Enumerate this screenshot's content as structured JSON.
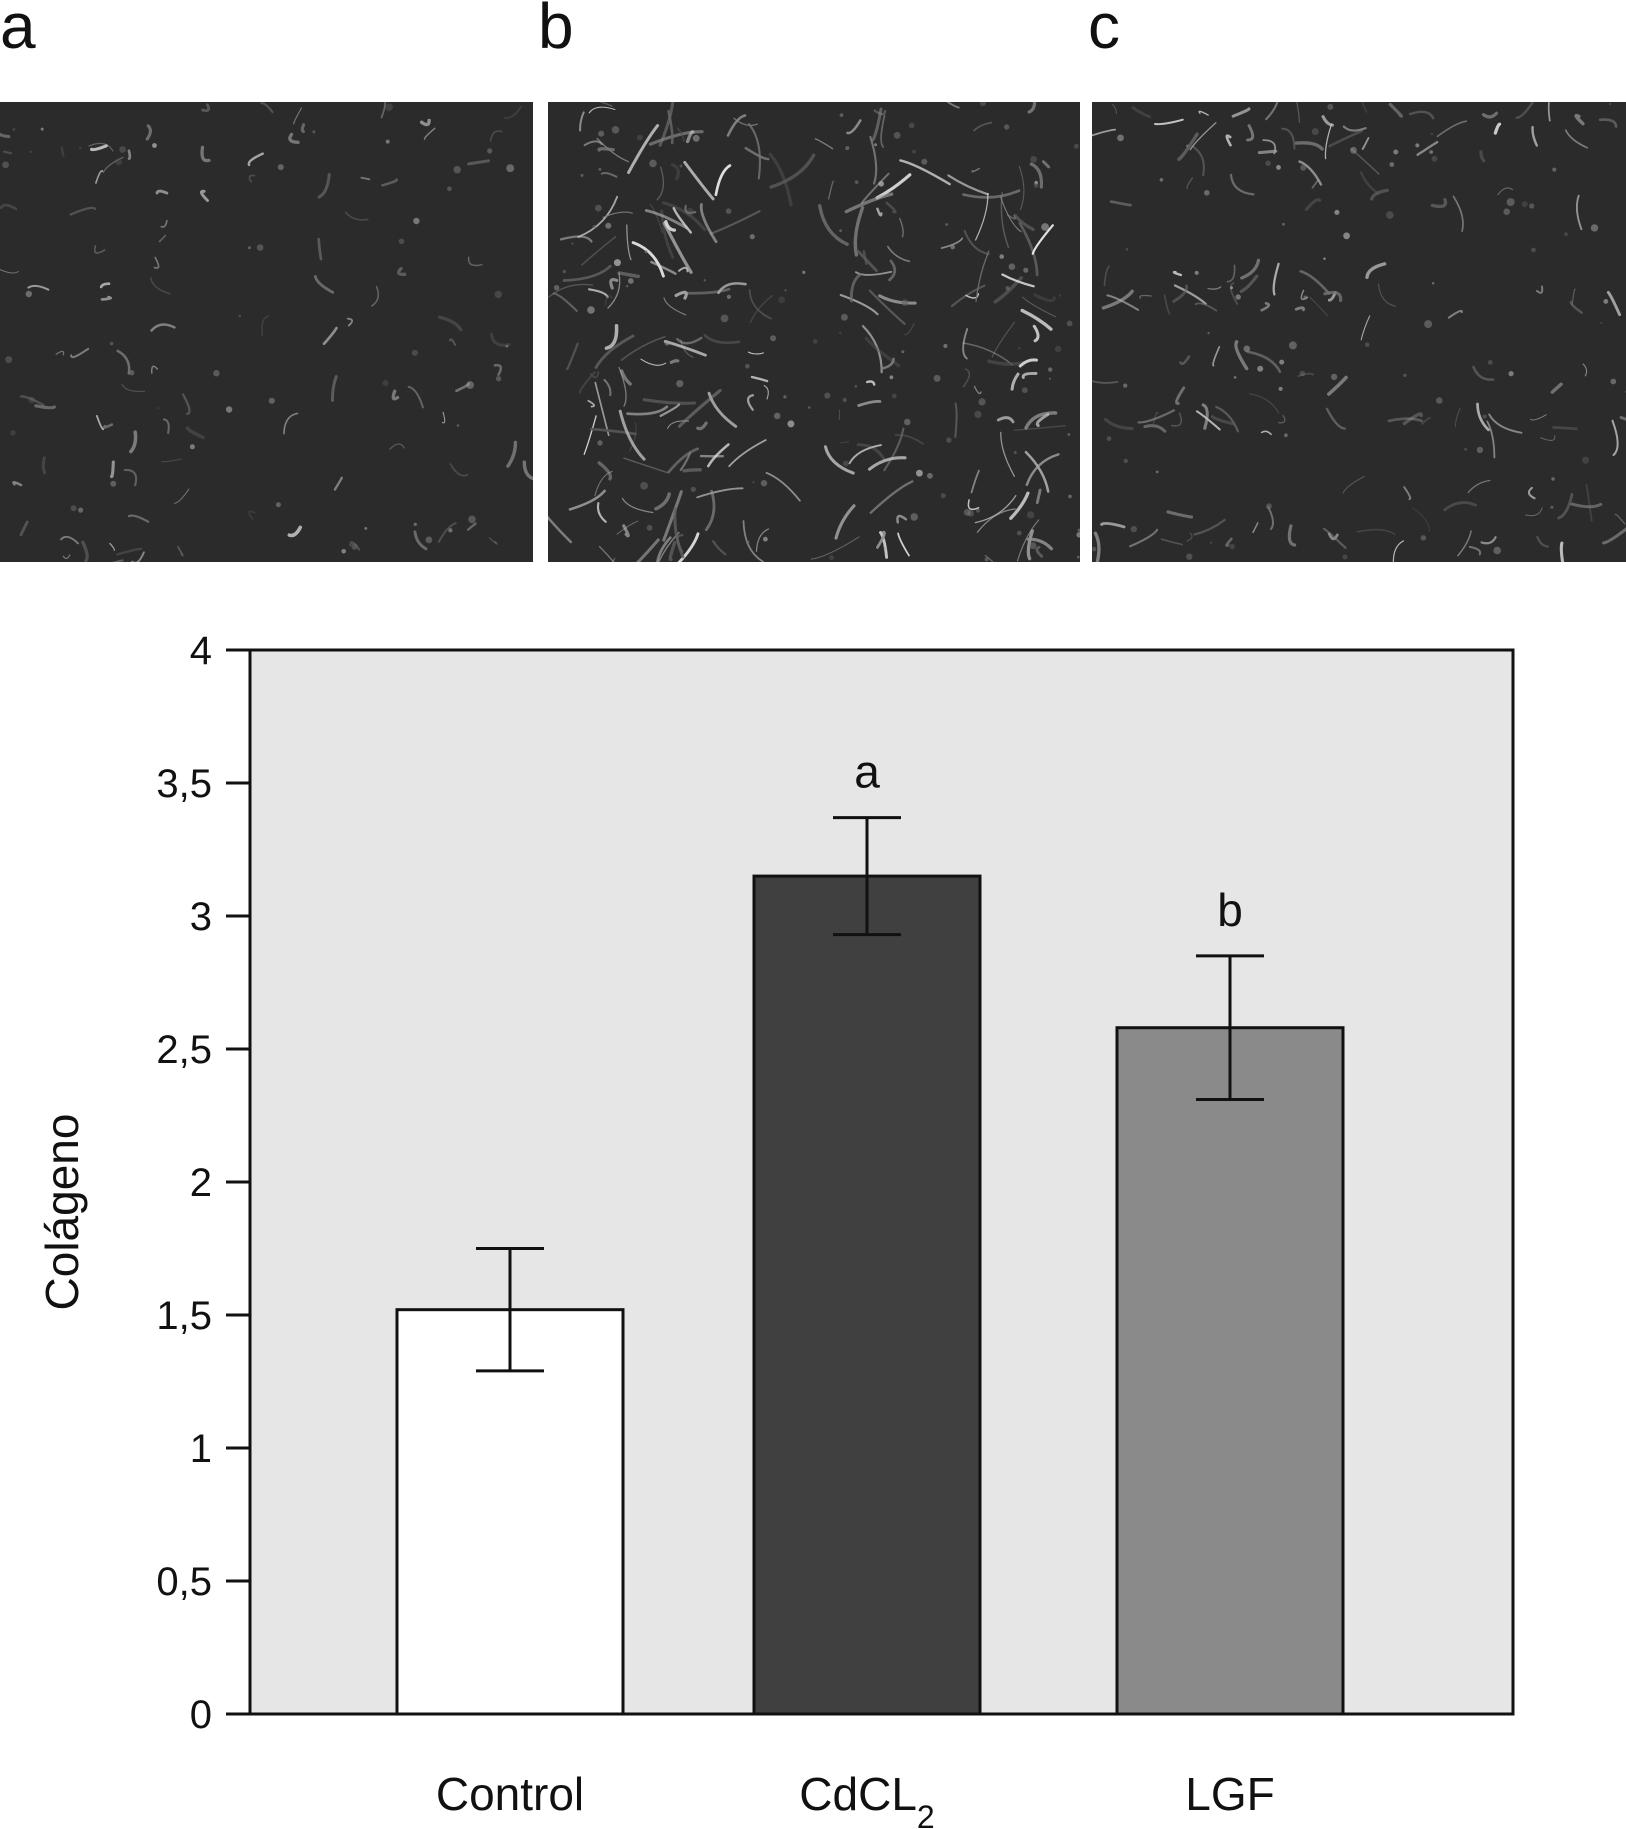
{
  "panels": [
    {
      "letter": "a",
      "fiber_density": 0.25
    },
    {
      "letter": "b",
      "fiber_density": 1.0
    },
    {
      "letter": "c",
      "fiber_density": 0.55
    }
  ],
  "chart_data": {
    "type": "bar",
    "categories": [
      "Control",
      "CdCL",
      "LGF"
    ],
    "category_subscripts": [
      "",
      "2",
      ""
    ],
    "values": [
      1.52,
      3.15,
      2.58
    ],
    "errors": [
      0.23,
      0.22,
      0.27
    ],
    "significance": [
      "",
      "a",
      "b"
    ],
    "bar_colors": [
      "#ffffff",
      "#404040",
      "#8a8a8a"
    ],
    "ylabel": "Colágeno",
    "ylim": [
      0,
      4
    ],
    "yticks": [
      "0",
      "0,5",
      "1",
      "1,5",
      "2",
      "2,5",
      "3",
      "3,5",
      "4"
    ],
    "plot_background": "#e6e6e6"
  }
}
